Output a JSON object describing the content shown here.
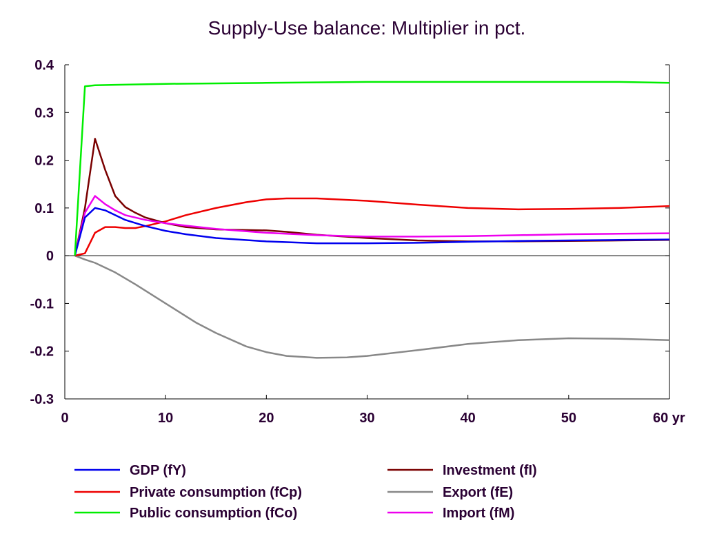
{
  "chart_data": {
    "type": "line",
    "title": "Supply-Use balance: Multiplier in pct.",
    "xlim": [
      0,
      60
    ],
    "ylim": [
      -0.3,
      0.4
    ],
    "x_ticks": [
      {
        "value": 0,
        "label": "0"
      },
      {
        "value": 10,
        "label": "10"
      },
      {
        "value": 20,
        "label": "20"
      },
      {
        "value": 30,
        "label": "30"
      },
      {
        "value": 40,
        "label": "40"
      },
      {
        "value": 50,
        "label": "50"
      },
      {
        "value": 60,
        "label": "60 yr"
      }
    ],
    "y_ticks": [
      {
        "value": 0.4,
        "label": "0.4"
      },
      {
        "value": 0.3,
        "label": "0.3"
      },
      {
        "value": 0.2,
        "label": "0.2"
      },
      {
        "value": 0.1,
        "label": "0.1"
      },
      {
        "value": 0,
        "label": "0"
      },
      {
        "value": -0.1,
        "label": "-0.1"
      },
      {
        "value": -0.2,
        "label": "-0.2"
      },
      {
        "value": -0.3,
        "label": "-0.3"
      }
    ],
    "grid": false,
    "legend_position": "bottom",
    "series": [
      {
        "name": "GDP (fY)",
        "color": "#0000ee",
        "x": [
          1,
          2,
          3,
          4,
          5,
          6,
          8,
          10,
          12,
          15,
          20,
          25,
          30,
          35,
          40,
          45,
          50,
          55,
          60
        ],
        "y": [
          0,
          0.08,
          0.1,
          0.095,
          0.085,
          0.075,
          0.062,
          0.052,
          0.045,
          0.037,
          0.03,
          0.026,
          0.026,
          0.027,
          0.029,
          0.031,
          0.032,
          0.033,
          0.034
        ]
      },
      {
        "name": "Private consumption (fCp)",
        "color": "#ee0000",
        "x": [
          1,
          2,
          3,
          4,
          5,
          6,
          7,
          8,
          10,
          12,
          15,
          18,
          20,
          22,
          25,
          30,
          35,
          40,
          45,
          50,
          55,
          60
        ],
        "y": [
          0,
          0.005,
          0.048,
          0.06,
          0.06,
          0.058,
          0.058,
          0.062,
          0.072,
          0.085,
          0.1,
          0.112,
          0.118,
          0.12,
          0.12,
          0.115,
          0.107,
          0.1,
          0.097,
          0.098,
          0.1,
          0.104
        ]
      },
      {
        "name": "Public consumption (fCo)",
        "color": "#00ee00",
        "x": [
          1,
          2,
          3,
          5,
          10,
          20,
          30,
          40,
          50,
          55,
          60
        ],
        "y": [
          0,
          0.355,
          0.357,
          0.358,
          0.36,
          0.362,
          0.364,
          0.364,
          0.364,
          0.364,
          0.362
        ]
      },
      {
        "name": "Investment (fI)",
        "color": "#7a0000",
        "x": [
          1,
          2,
          3,
          4,
          5,
          6,
          7,
          8,
          10,
          12,
          15,
          20,
          22,
          25,
          30,
          35,
          40,
          45,
          50,
          55,
          60
        ],
        "y": [
          0,
          0.1,
          0.245,
          0.18,
          0.125,
          0.102,
          0.09,
          0.08,
          0.068,
          0.06,
          0.055,
          0.053,
          0.05,
          0.044,
          0.037,
          0.032,
          0.03,
          0.03,
          0.031,
          0.032,
          0.033
        ]
      },
      {
        "name": "Export (fE)",
        "color": "#888888",
        "x": [
          1,
          2,
          3,
          5,
          7,
          10,
          13,
          15,
          18,
          20,
          22,
          25,
          28,
          30,
          35,
          40,
          45,
          50,
          55,
          60
        ],
        "y": [
          0,
          -0.008,
          -0.015,
          -0.035,
          -0.06,
          -0.1,
          -0.14,
          -0.162,
          -0.19,
          -0.202,
          -0.21,
          -0.214,
          -0.213,
          -0.21,
          -0.198,
          -0.185,
          -0.177,
          -0.173,
          -0.174,
          -0.177
        ]
      },
      {
        "name": "Import (fM)",
        "color": "#ee00ee",
        "x": [
          1,
          2,
          3,
          4,
          5,
          6,
          8,
          10,
          12,
          15,
          20,
          25,
          30,
          35,
          40,
          45,
          50,
          55,
          60
        ],
        "y": [
          0,
          0.09,
          0.125,
          0.108,
          0.095,
          0.085,
          0.075,
          0.068,
          0.063,
          0.056,
          0.048,
          0.043,
          0.04,
          0.04,
          0.041,
          0.043,
          0.045,
          0.046,
          0.047
        ]
      }
    ]
  }
}
